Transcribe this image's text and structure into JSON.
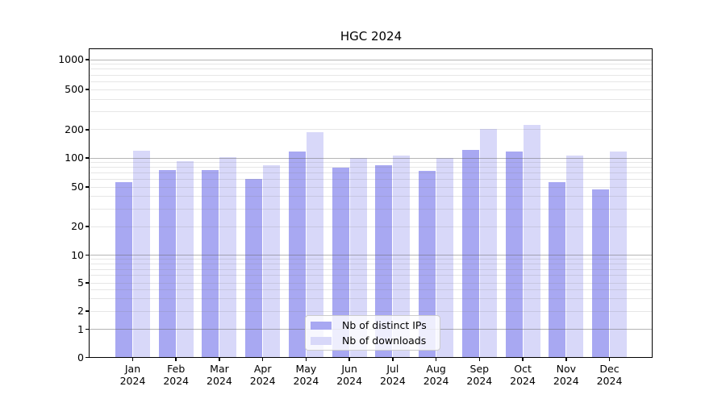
{
  "title": "HGC 2024",
  "chart_data": {
    "type": "bar",
    "title": "HGC 2024",
    "categories": [
      "Jan 2024",
      "Feb 2024",
      "Mar 2024",
      "Apr 2024",
      "May 2024",
      "Jun 2024",
      "Jul 2024",
      "Aug 2024",
      "Sep 2024",
      "Oct 2024",
      "Nov 2024",
      "Dec 2024"
    ],
    "x_tick_months": [
      "Jan",
      "Feb",
      "Mar",
      "Apr",
      "May",
      "Jun",
      "Jul",
      "Aug",
      "Sep",
      "Oct",
      "Nov",
      "Dec"
    ],
    "x_tick_year": "2024",
    "series": [
      {
        "name": "Nb of distinct IPs",
        "key": "distinct-ips",
        "color": "#a8a8f2",
        "values": [
          56,
          74,
          74,
          60,
          117,
          78,
          83,
          73,
          120,
          117,
          56,
          47
        ]
      },
      {
        "name": "Nb of downloads",
        "key": "downloads",
        "color": "#d8d8f9",
        "values": [
          119,
          91,
          101,
          83,
          185,
          99,
          105,
          99,
          202,
          220,
          106,
          115
        ]
      }
    ],
    "xlabel": "",
    "ylabel": "",
    "yscale": "symlog",
    "ylim": [
      0,
      1100
    ],
    "y_ticks": [
      0,
      1,
      2,
      5,
      10,
      20,
      50,
      100,
      200,
      500,
      1000
    ],
    "major_gridline_values": [
      1,
      10,
      100,
      1000
    ],
    "minor_gridline_values": [
      2,
      3,
      4,
      5,
      6,
      7,
      8,
      9,
      20,
      30,
      40,
      50,
      60,
      70,
      80,
      90,
      200,
      300,
      400,
      500,
      600,
      700,
      800,
      900
    ],
    "grid": true,
    "grid_above_bars": true,
    "legend_position": "lower center"
  },
  "colors": {
    "bar_distinct_ips": "#a8a8f2",
    "bar_downloads": "#d8d8f9",
    "major_grid": "#b3b3b3",
    "minor_grid": "#e6e6e6",
    "axis": "#000000",
    "background": "#ffffff"
  }
}
